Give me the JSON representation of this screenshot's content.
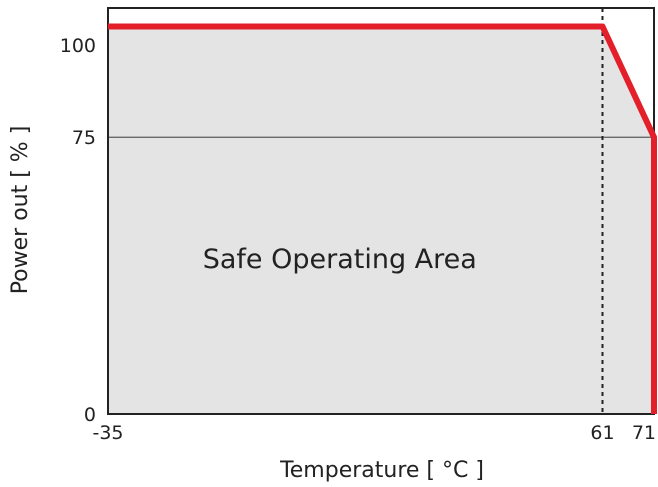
{
  "chart_data": {
    "type": "area",
    "xlabel": "Temperature [ °C ]",
    "ylabel": "Power out [ % ]",
    "x_ticks": [
      -35,
      61,
      71
    ],
    "y_ticks": [
      0,
      75,
      100
    ],
    "x_tick_labels": [
      "-35",
      "61",
      "71"
    ],
    "y_tick_labels": [
      "0",
      "75",
      "100"
    ],
    "xlim": [
      -35,
      71
    ],
    "ylim": [
      0,
      110
    ],
    "series": [
      {
        "x": [
          -35,
          61,
          71,
          71
        ],
        "y": [
          105,
          105,
          75,
          0
        ]
      }
    ],
    "annotations": [
      {
        "text": "Safe Operating Area",
        "x": 10,
        "y": 42
      }
    ],
    "reference_lines": {
      "vertical_dashed_x": 61,
      "horizontal_y": 75
    },
    "colors": {
      "line": "#e3202a",
      "fill": "#e4e4e4",
      "axis": "#222222"
    }
  }
}
